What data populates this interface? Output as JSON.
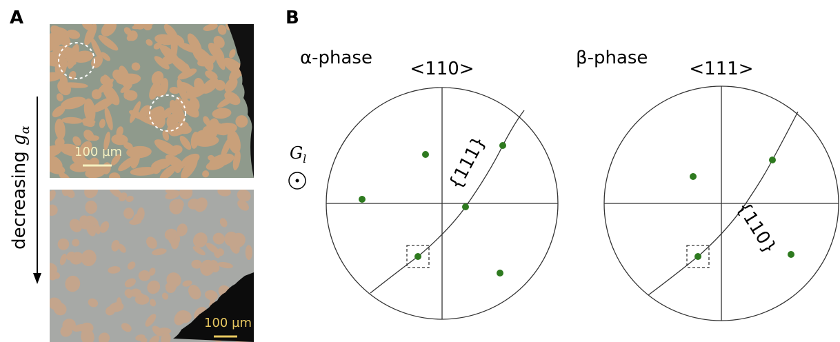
{
  "panel_a": {
    "label": "A",
    "side_label": {
      "text": "decreasing ",
      "symbol": "g",
      "subscript": "α"
    },
    "scale_bars": [
      "100 µm",
      "100 µm"
    ]
  },
  "panel_b": {
    "label": "B",
    "gradient_label": {
      "symbol": "G",
      "subscript": "l"
    },
    "pole_figures": [
      {
        "phase": "α-phase",
        "axis": "<110>",
        "plane": "{111}"
      },
      {
        "phase": "β-phase",
        "axis": "<111>",
        "plane": "{110}"
      }
    ]
  }
}
